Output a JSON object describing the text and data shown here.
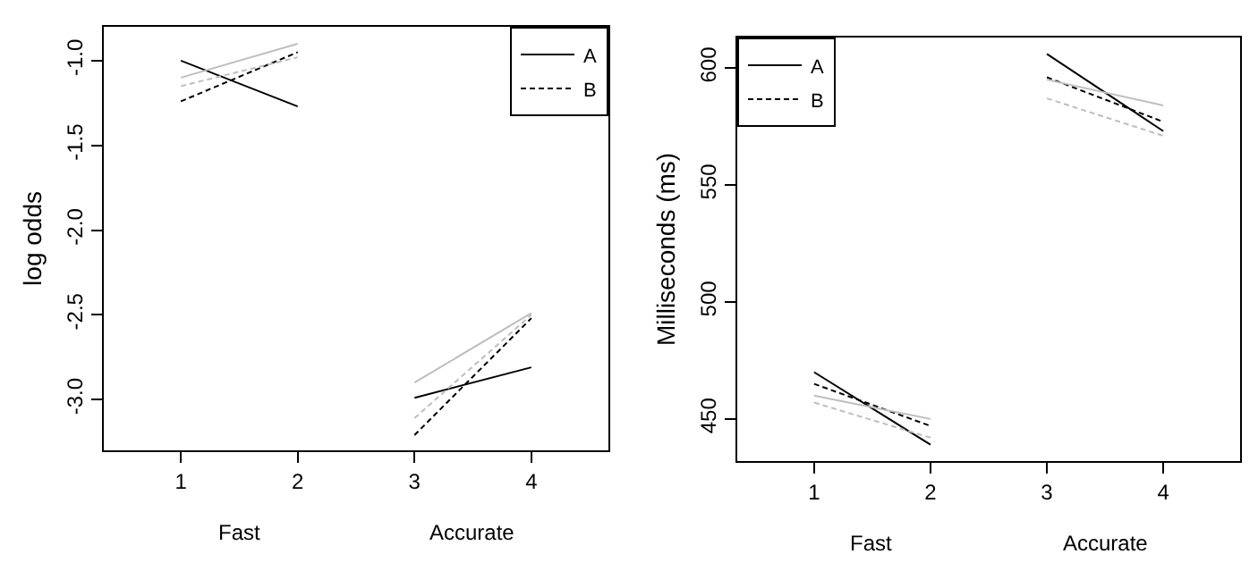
{
  "chart_data": [
    {
      "type": "line",
      "ylabel": "log odds",
      "xlim": [
        0.34,
        4.66
      ],
      "xticks": [
        1,
        2,
        3,
        4
      ],
      "ylim": [
        -3.3,
        -0.8
      ],
      "yticks": [
        {
          "value": -3,
          "label": "-3.0"
        },
        -2.5,
        {
          "value": -2,
          "label": "-2.0"
        },
        -1.5,
        {
          "value": -1,
          "label": "-1.0"
        }
      ],
      "grid": false,
      "legend": "top right",
      "marker": "none",
      "annotations": [
        "Fast",
        "Accurate"
      ],
      "series": [
        {
          "name": "A",
          "color": "#000000",
          "line_style": "solid",
          "x": [
            1,
            2
          ],
          "values": [
            -1.0,
            -1.27
          ]
        },
        {
          "color": "#000000",
          "line_style": "solid",
          "x": [
            3,
            4
          ],
          "values": [
            -2.99,
            -2.81
          ]
        },
        {
          "name": "B",
          "color": "#000000",
          "line_style": "dashed",
          "x": [
            1,
            2
          ],
          "values": [
            -1.24,
            -0.95
          ]
        },
        {
          "color": "#000000",
          "line_style": "dashed",
          "x": [
            3,
            4
          ],
          "values": [
            -3.21,
            -2.52
          ]
        },
        {
          "color": "#bebebe",
          "line_style": "solid",
          "x": [
            1,
            2
          ],
          "values": [
            -1.1,
            -0.9
          ]
        },
        {
          "color": "#bebebe",
          "line_style": "solid",
          "x": [
            3,
            4
          ],
          "values": [
            -2.9,
            -2.49
          ]
        },
        {
          "color": "#bebebe",
          "line_style": "dashed",
          "x": [
            1,
            2
          ],
          "values": [
            -1.15,
            -0.98
          ]
        },
        {
          "color": "#bebebe",
          "line_style": "dashed",
          "x": [
            3,
            4
          ],
          "values": [
            -3.11,
            -2.5
          ]
        }
      ]
    },
    {
      "type": "line",
      "ylabel": "Milliseconds (ms)",
      "xlim": [
        0.34,
        4.66
      ],
      "xticks": [
        1,
        2,
        3,
        4
      ],
      "ylim": [
        432,
        613
      ],
      "yticks": [
        450,
        500,
        550,
        600
      ],
      "grid": false,
      "legend": "top left",
      "marker": "none",
      "annotations": [
        "Fast",
        "Accurate"
      ],
      "series": [
        {
          "name": "A",
          "color": "#000000",
          "line_style": "solid",
          "x": [
            1,
            2
          ],
          "values": [
            470,
            439
          ]
        },
        {
          "color": "#000000",
          "line_style": "solid",
          "x": [
            3,
            4
          ],
          "values": [
            606,
            573
          ]
        },
        {
          "name": "B",
          "color": "#000000",
          "line_style": "dashed",
          "x": [
            1,
            2
          ],
          "values": [
            465,
            447
          ]
        },
        {
          "color": "#000000",
          "line_style": "dashed",
          "x": [
            3,
            4
          ],
          "values": [
            596,
            577
          ]
        },
        {
          "color": "#bebebe",
          "line_style": "solid",
          "x": [
            1,
            2
          ],
          "values": [
            460,
            450
          ]
        },
        {
          "color": "#bebebe",
          "line_style": "solid",
          "x": [
            3,
            4
          ],
          "values": [
            595,
            584
          ]
        },
        {
          "color": "#bebebe",
          "line_style": "dashed",
          "x": [
            1,
            2
          ],
          "values": [
            457,
            442
          ]
        },
        {
          "color": "#bebebe",
          "line_style": "dashed",
          "x": [
            3,
            4
          ],
          "values": [
            587,
            571
          ]
        }
      ]
    }
  ]
}
